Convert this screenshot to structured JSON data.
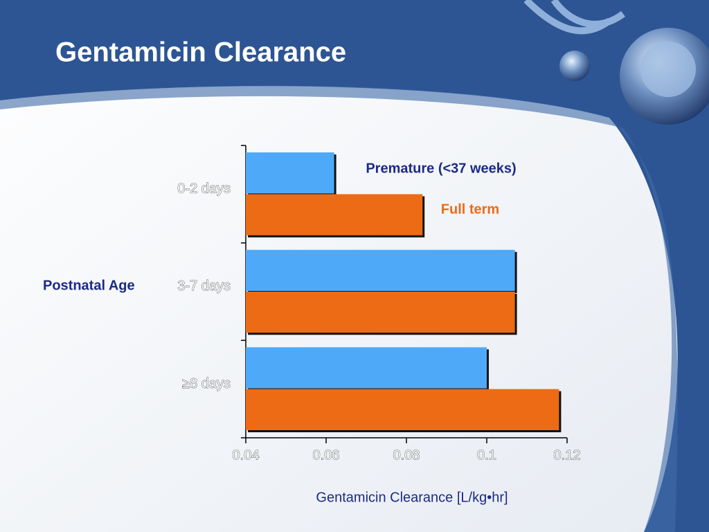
{
  "chart_data": {
    "type": "barh",
    "title": "Gentamicin Clearance",
    "xlabel": "Gentamicin Clearance [L/kg•hr]",
    "ylabel": "Postnatal Age",
    "categories": [
      "0-2 days",
      "3-7 days",
      "≥8 days"
    ],
    "series": [
      {
        "name": "Premature (<37 weeks)",
        "color": "#4eaaf8",
        "label_color": "#1b2a86",
        "values": [
          0.062,
          0.107,
          0.1
        ]
      },
      {
        "name": "Full term",
        "color": "#ee6b16",
        "label_color": "#ee6b16",
        "values": [
          0.084,
          0.107,
          0.118
        ]
      }
    ],
    "xlim": [
      0.04,
      0.12
    ],
    "xticks": [
      0.04,
      0.06,
      0.08,
      0.1,
      0.12
    ]
  }
}
